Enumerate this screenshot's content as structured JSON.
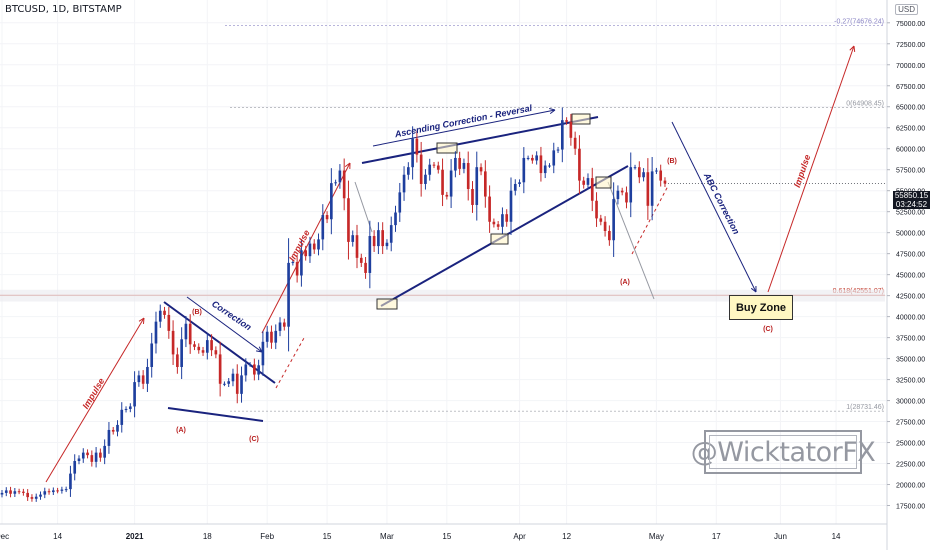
{
  "header": {
    "symbol": "BTCUSD, 1D, BITSTAMP",
    "currency": "USD"
  },
  "watermark": "@WicktatorFX",
  "price_tag": {
    "price": "55850.15",
    "countdown": "03:24:52"
  },
  "chart_data": {
    "type": "candlestick",
    "title": "",
    "xlabel": "",
    "ylabel": "",
    "ylim": [
      16250,
      77000
    ],
    "yticks": [
      17500,
      20000,
      22500,
      25000,
      27500,
      30000,
      32500,
      35000,
      37500,
      40000,
      42500,
      45000,
      47500,
      50000,
      52500,
      55000,
      57500,
      60000,
      62500,
      65000,
      67500,
      70000,
      72500,
      75000
    ],
    "ytick_labels": [
      "17500.00",
      "20000.00",
      "22500.00",
      "25000.00",
      "27500.00",
      "30000.00",
      "32500.00",
      "35000.00",
      "37500.00",
      "40000.00",
      "42500.00",
      "45000.00",
      "47500.00",
      "50000.00",
      "52500.00",
      "55000.00",
      "57500.00",
      "60000.00",
      "62500.00",
      "65000.00",
      "67500.00",
      "70000.00",
      "72500.00",
      "75000.00"
    ],
    "x_start": "2020-12-01",
    "x_end": "2021-06-21",
    "xticks": [
      {
        "date": "2020-12-01",
        "label": "Dec"
      },
      {
        "date": "2020-12-14",
        "label": "14"
      },
      {
        "date": "2021-01-01",
        "label": "2021"
      },
      {
        "date": "2021-01-18",
        "label": "18"
      },
      {
        "date": "2021-02-01",
        "label": "Feb"
      },
      {
        "date": "2021-02-15",
        "label": "15"
      },
      {
        "date": "2021-03-01",
        "label": "Mar"
      },
      {
        "date": "2021-03-15",
        "label": "15"
      },
      {
        "date": "2021-04-01",
        "label": "Apr"
      },
      {
        "date": "2021-04-12",
        "label": "12"
      },
      {
        "date": "2021-05-03",
        "label": "May"
      },
      {
        "date": "2021-05-17",
        "label": "17"
      },
      {
        "date": "2021-06-01",
        "label": "Jun"
      },
      {
        "date": "2021-06-14",
        "label": "14"
      }
    ],
    "close_series": {
      "start": "2020-12-01",
      "values": [
        19000,
        19300,
        18900,
        19200,
        19150,
        19000,
        18500,
        18300,
        18550,
        18800,
        19200,
        19100,
        19300,
        19250,
        19400,
        19450,
        21300,
        22800,
        23100,
        23800,
        23500,
        22700,
        23800,
        23200,
        24600,
        26500,
        26300,
        27100,
        28900,
        29000,
        29300,
        32200,
        33000,
        32000,
        34000,
        36800,
        39400,
        40700,
        40200,
        38300,
        35500,
        34000,
        37300,
        39150,
        36700,
        36400,
        36000,
        35700,
        37200,
        36000,
        35500,
        32000,
        32000,
        32300,
        33200,
        30800,
        33000,
        34300,
        34300,
        33100,
        34200,
        37000,
        38200,
        36900,
        38300,
        39300,
        38800,
        46400,
        46500,
        44900,
        47900,
        47200,
        48700,
        48000,
        49200,
        52100,
        51600,
        55900,
        56000,
        57400,
        54100,
        48900,
        49700,
        47000,
        46400,
        45200,
        49600,
        48400,
        50300,
        48400,
        48800,
        50900,
        52400,
        54800,
        56900,
        57800,
        61200,
        59300,
        55800,
        56900,
        58100,
        58000,
        57500,
        54500,
        54300,
        57400,
        58900,
        57600,
        58300,
        55200,
        53300,
        57800,
        57300,
        54300,
        51300,
        51000,
        50700,
        52200,
        51300,
        55000,
        55800,
        56000,
        58900,
        58900,
        58600,
        59200,
        57100,
        58000,
        58000,
        59800,
        59900,
        63400,
        63200,
        61300,
        60000,
        56200,
        55700,
        56500,
        53800,
        51700,
        51300,
        50200,
        49100,
        54000,
        55000,
        54800,
        53600,
        57800,
        57800,
        56600,
        57200,
        53200,
        57300,
        57400,
        56200,
        55850
      ]
    },
    "levels": [
      {
        "label": "-0.27(74676.24)",
        "value": 74676.24,
        "color": "#8a84c4"
      },
      {
        "label": "0(64908.45)",
        "value": 64908.45,
        "color": "#9598a1"
      },
      {
        "label": "0.618(42551.07)",
        "value": 42551.07,
        "color": "#c0392b"
      },
      {
        "label": "1(28731.46)",
        "value": 28731.46,
        "color": "#9598a1"
      }
    ],
    "annotations": [
      {
        "text": "Impulse",
        "color": "#c62828"
      },
      {
        "text": "Correction",
        "color": "#1a237e"
      },
      {
        "text": "Impulse",
        "color": "#c62828"
      },
      {
        "text": "Ascending Correction - Reversal",
        "color": "#1a237e"
      },
      {
        "text": "ABC Correction",
        "color": "#1a237e"
      },
      {
        "text": "Impulse",
        "color": "#c62828"
      },
      {
        "text": "(A)",
        "color": "#b71c1c"
      },
      {
        "text": "(B)",
        "color": "#b71c1c"
      },
      {
        "text": "(C)",
        "color": "#b71c1c"
      },
      {
        "text": "(A)",
        "color": "#b71c1c"
      },
      {
        "text": "(B)",
        "color": "#b71c1c"
      },
      {
        "text": "(C)",
        "color": "#b71c1c"
      }
    ],
    "buy_zone": {
      "label": "Buy Zone",
      "range": [
        41800,
        43200
      ]
    },
    "colors": {
      "up": "#1e3f9e",
      "down": "#c62828",
      "grid": "#f0f3fa",
      "axis": "#131722"
    }
  }
}
